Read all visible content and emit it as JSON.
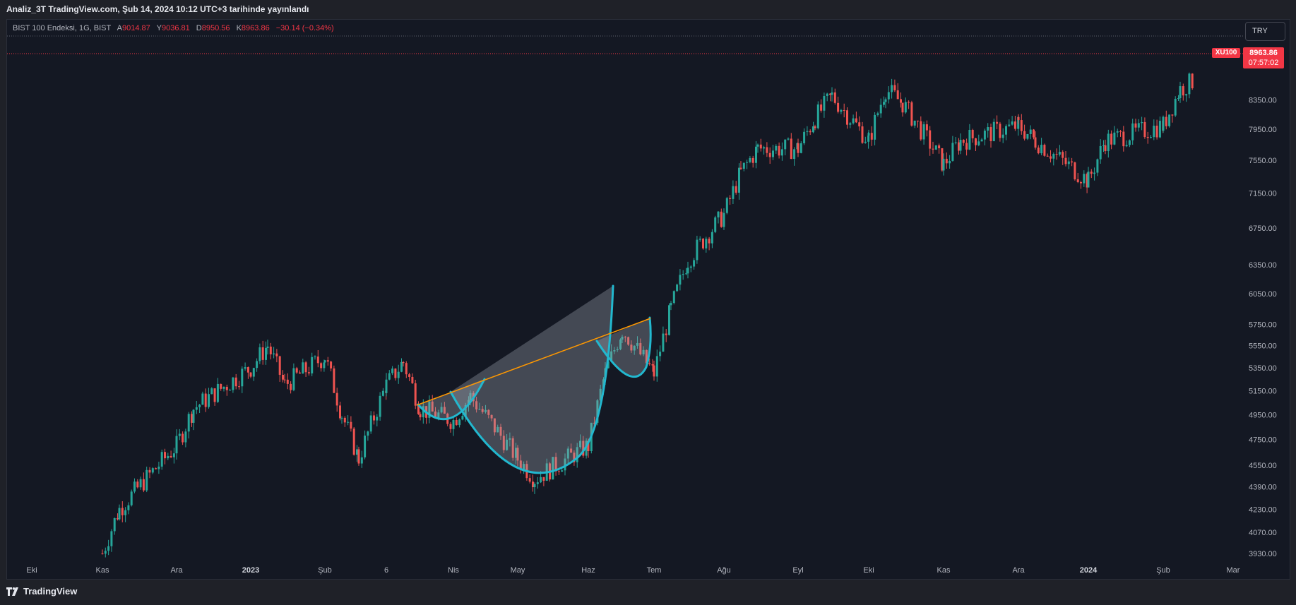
{
  "header": {
    "caption": "Analiz_3T TradingView.com, Şub 14, 2024 10:12 UTC+3 tarihinde yayınlandı"
  },
  "legend": {
    "symbol": "BIST 100 Endeksi, 1G, BIST",
    "open_label": "A",
    "open": "9014.87",
    "high_label": "Y",
    "high": "9036.81",
    "low_label": "D",
    "low": "8950.56",
    "close_label": "K",
    "close": "8963.86",
    "change": "−30.14 (−0.34%)"
  },
  "currency_button": "TRY",
  "symbol_tag": "XU100",
  "price_tag": {
    "price": "8963.86",
    "countdown": "07:57:02"
  },
  "brand": "TradingView",
  "colors": {
    "background": "#141823",
    "up": "#26a69a",
    "down": "#ef5350",
    "pattern_curve": "#22b8cf",
    "neckline": "#ff9800",
    "last_price": "#f23645"
  },
  "icons": {
    "brand_logo": "tradingview-logo-icon"
  },
  "chart_data": {
    "type": "candlestick",
    "title": "",
    "y_ticks": [
      "8350.00",
      "7950.00",
      "7550.00",
      "7150.00",
      "6750.00",
      "6350.00",
      "6050.00",
      "5750.00",
      "5550.00",
      "5350.00",
      "5150.00",
      "4950.00",
      "4750.00",
      "4550.00",
      "4390.00",
      "4230.00",
      "4070.00",
      "3930.00"
    ],
    "x_ticks": [
      "Eki",
      "Kas",
      "Ara",
      "2023",
      "Şub",
      "6",
      "Nis",
      "May",
      "Haz",
      "Tem",
      "Ağu",
      "Eyl",
      "Eki",
      "Kas",
      "Ara",
      "2024",
      "Şub",
      "Mar"
    ],
    "bold_x_ticks": [
      "2023",
      "2024"
    ],
    "scale": "log",
    "ylim": [
      3880,
      9100
    ],
    "last_price": 8963.86,
    "series": [
      {
        "name": "XU100",
        "points": [
          [
            "Kas",
            3930
          ],
          [
            "Kas",
            4230
          ],
          [
            "Ara",
            4700
          ],
          [
            "Ara",
            5000
          ],
          [
            "2023",
            5350
          ],
          [
            "2023",
            5550
          ],
          [
            "2023",
            5200
          ],
          [
            "Şub",
            5450
          ],
          [
            "Şub",
            4950
          ],
          [
            "Şub",
            4600
          ],
          [
            "6",
            5200
          ],
          [
            "6",
            5400
          ],
          [
            "6",
            5000
          ],
          [
            "Nis",
            4900
          ],
          [
            "Nis",
            5100
          ],
          [
            "May",
            4600
          ],
          [
            "May",
            4450
          ],
          [
            "Haz",
            4700
          ],
          [
            "Haz",
            5300
          ],
          [
            "Haz",
            5700
          ],
          [
            "Tem",
            5300
          ],
          [
            "Tem",
            5900
          ],
          [
            "Tem",
            6400
          ],
          [
            "Ağu",
            6900
          ],
          [
            "Ağu",
            7400
          ],
          [
            "Ağu",
            7700
          ],
          [
            "Eyl",
            7700
          ],
          [
            "Eyl",
            8100
          ],
          [
            "Eyl",
            8400
          ],
          [
            "Eki",
            7800
          ],
          [
            "Eki",
            8500
          ],
          [
            "Eki",
            8300
          ],
          [
            "Kas",
            7500
          ],
          [
            "Kas",
            7800
          ],
          [
            "Ara",
            8000
          ],
          [
            "Ara",
            7800
          ],
          [
            "2024",
            7300
          ],
          [
            "2024",
            7800
          ],
          [
            "Şub",
            8000
          ],
          [
            "Şub",
            8500
          ],
          [
            "Mar",
            8964
          ]
        ]
      }
    ],
    "annotations": [
      {
        "type": "cup-and-handle-curves",
        "color": "#22b8cf"
      },
      {
        "type": "trendline",
        "color": "#ff9800"
      }
    ]
  }
}
